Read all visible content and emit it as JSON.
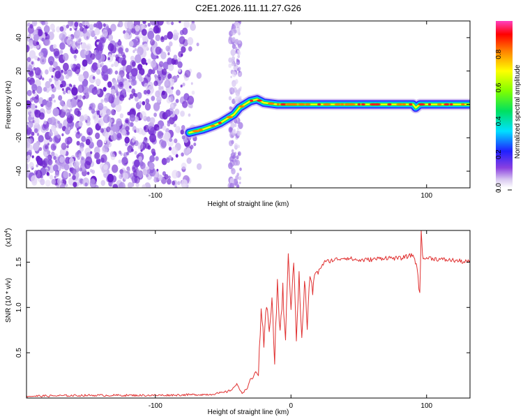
{
  "figure_title": "C2E1.2026.111.11.27.G26",
  "chart_data": [
    {
      "type": "heatmap",
      "xlabel": "Height of straight line (km)",
      "ylabel": "Frequency (Hz)",
      "xlim": [
        -195,
        132
      ],
      "ylim": [
        -50,
        50
      ],
      "x_ticks": [
        -100,
        0,
        100
      ],
      "x_tick_labels": [
        "-100",
        "",
        "100"
      ],
      "y_ticks": [
        -40,
        -20,
        0,
        20,
        40
      ],
      "y_tick_labels": [
        "-40",
        "-20",
        "0",
        "20",
        "40"
      ],
      "colorbar": {
        "label": "Normalized spectral amplitude",
        "range": [
          0,
          1
        ],
        "ticks": [
          0.0,
          0.2,
          0.4,
          0.6,
          0.8
        ],
        "tick_labels": [
          "0.0",
          "0.2",
          "0.4",
          "0.6",
          "0.8"
        ],
        "colors": [
          "#ffffff",
          "#d8c8f0",
          "#8a40e0",
          "#2020ff",
          "#00e0ff",
          "#00e060",
          "#80ff00",
          "#ffff00",
          "#ff8000",
          "#ff0000",
          "#ff40c0"
        ]
      },
      "ridge": {
        "x": [
          -75,
          -70,
          -65,
          -58,
          -52,
          -46,
          -42,
          -38,
          -34,
          -30,
          -25,
          -20,
          -10,
          0,
          20,
          50,
          80,
          90,
          92,
          95,
          110,
          132
        ],
        "frequency": [
          -17,
          -16,
          -15,
          -13,
          -11,
          -8,
          -6,
          -2,
          0,
          2,
          3,
          1,
          0,
          0,
          0,
          0,
          0,
          0,
          -2,
          0,
          0,
          0
        ]
      },
      "noise_region_x": [
        -195,
        -70
      ],
      "noise_band_x": [
        -45,
        -37
      ],
      "grid": false
    },
    {
      "type": "line",
      "xlabel": "Height of straight line (km)",
      "ylabel": "SNR (10 * v/v)",
      "y_multiplier_label": "(x10",
      "y_multiplier_exponent": "4",
      "y_multiplier_close": ")",
      "xlim": [
        -195,
        132
      ],
      "ylim": [
        0,
        1.85
      ],
      "x_ticks": [
        -100,
        0,
        100
      ],
      "x_tick_labels": [
        "-100",
        "0",
        "100"
      ],
      "y_ticks": [
        0.5,
        1.0,
        1.5
      ],
      "y_tick_labels": [
        "0.5",
        "1.0",
        "1.5"
      ],
      "grid": false,
      "series": [
        {
          "color": "#e03030",
          "x": [
            -195,
            -150,
            -100,
            -60,
            -50,
            -45,
            -40,
            -38,
            -36,
            -34,
            -32,
            -30,
            -28,
            -26,
            -24,
            -22,
            -20,
            -18,
            -16,
            -14,
            -12,
            -10,
            -8,
            -6,
            -4,
            -2,
            0,
            2,
            4,
            6,
            8,
            10,
            12,
            14,
            16,
            18,
            20,
            22,
            25,
            30,
            40,
            50,
            60,
            70,
            80,
            85,
            90,
            93,
            95,
            96,
            97,
            98,
            100,
            110,
            120,
            130,
            132
          ],
          "y": [
            0.02,
            0.03,
            0.03,
            0.04,
            0.06,
            0.08,
            0.15,
            0.1,
            0.06,
            0.08,
            0.12,
            0.2,
            0.22,
            0.3,
            0.25,
            0.9,
            0.6,
            1.0,
            0.8,
            1.1,
            0.4,
            1.3,
            0.7,
            1.2,
            0.6,
            1.6,
            1.0,
            1.5,
            0.7,
            1.4,
            0.6,
            1.3,
            0.8,
            1.35,
            1.2,
            1.4,
            1.38,
            1.45,
            1.5,
            1.52,
            1.55,
            1.52,
            1.53,
            1.55,
            1.54,
            1.56,
            1.58,
            1.45,
            1.1,
            1.85,
            1.6,
            1.52,
            1.55,
            1.53,
            1.52,
            1.5,
            1.52
          ]
        }
      ]
    }
  ]
}
